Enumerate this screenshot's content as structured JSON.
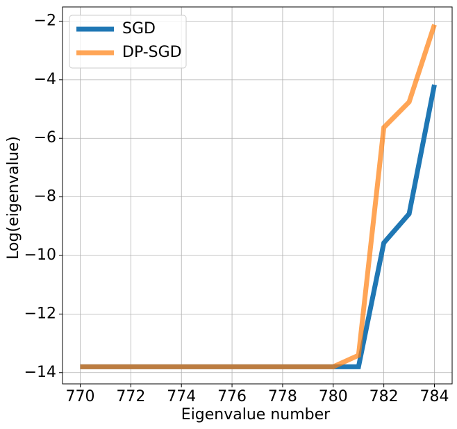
{
  "chart_data": {
    "type": "line",
    "xlabel": "Eigenvalue number",
    "ylabel": "Log(eigenvalue)",
    "x": [
      770,
      771,
      772,
      773,
      774,
      775,
      776,
      777,
      778,
      779,
      780,
      781,
      782,
      783,
      784
    ],
    "series": [
      {
        "name": "SGD",
        "color": "#1f77b4",
        "opacity": 1,
        "values": [
          -13.8,
          -13.8,
          -13.8,
          -13.8,
          -13.8,
          -13.8,
          -13.8,
          -13.8,
          -13.8,
          -13.8,
          -13.8,
          -13.8,
          -9.57,
          -8.58,
          -4.17
        ]
      },
      {
        "name": "DP-SGD",
        "color": "#ff7f0e",
        "opacity": 0.7,
        "values": [
          -13.8,
          -13.8,
          -13.8,
          -13.8,
          -13.8,
          -13.8,
          -13.8,
          -13.8,
          -13.8,
          -13.8,
          -13.8,
          -13.41,
          -5.63,
          -4.76,
          -2.12
        ]
      }
    ],
    "xlim": [
      769.3,
      784.7
    ],
    "xticks": [
      770,
      772,
      774,
      776,
      778,
      780,
      782,
      784
    ],
    "ylim": [
      -14.385,
      -1.515
    ],
    "yticks": [
      {
        "value": -14,
        "label": "−14"
      },
      {
        "value": -12,
        "label": "−12"
      },
      {
        "value": -10,
        "label": "−10"
      },
      {
        "value": -8,
        "label": "−8"
      },
      {
        "value": -6,
        "label": "−6"
      },
      {
        "value": -4,
        "label": "−4"
      },
      {
        "value": -2,
        "label": "−2"
      }
    ],
    "grid": true,
    "legend": "upper-left"
  }
}
